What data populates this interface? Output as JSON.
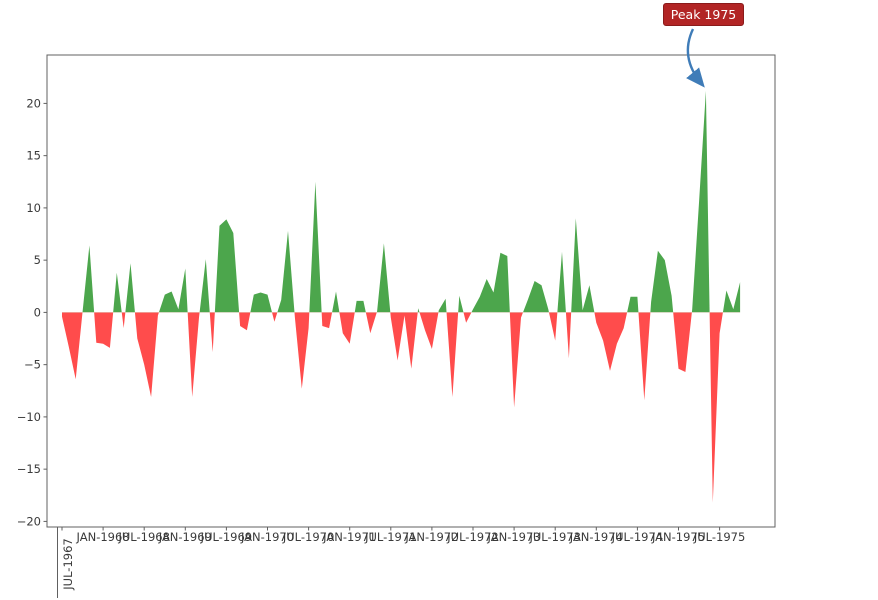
{
  "figure": {
    "background": "#ffffff"
  },
  "chart_data": {
    "type": "area",
    "title": "",
    "xlabel": "",
    "ylabel": "",
    "grid": false,
    "x_start": "JUL-1967",
    "x_freq": "monthly",
    "series": [
      {
        "name": "monthly-values",
        "values": [
          -0.4,
          -3.3,
          -6.4,
          0.0,
          6.4,
          -2.9,
          -3.0,
          -3.4,
          3.8,
          -1.5,
          4.7,
          -2.5,
          -5.0,
          -8.1,
          -0.3,
          1.7,
          2.0,
          0.3,
          4.2,
          -8.1,
          -0.5,
          5.1,
          -3.8,
          8.3,
          8.9,
          7.6,
          -1.3,
          -1.7,
          1.7,
          1.9,
          1.7,
          -0.9,
          1.2,
          7.8,
          -0.5,
          -7.3,
          -1.5,
          12.5,
          -1.3,
          -1.5,
          2.0,
          -2.0,
          -3.0,
          1.1,
          1.1,
          -2.0,
          0.1,
          6.6,
          -0.5,
          -4.6,
          -0.3,
          -5.4,
          0.4,
          -1.7,
          -3.5,
          0.2,
          1.3,
          -8.1,
          1.6,
          -1.0,
          0.3,
          1.5,
          3.2,
          1.9,
          5.7,
          5.4,
          -9.1,
          -0.5,
          1.2,
          3.0,
          2.6,
          0.3,
          -2.7,
          5.8,
          -4.4,
          9.0,
          0.2,
          2.6,
          -1.0,
          -2.7,
          -5.6,
          -3.0,
          -1.5,
          1.5,
          1.5,
          -8.4,
          1.0,
          5.9,
          5.0,
          1.6,
          -5.4,
          -5.7,
          0.3,
          10.5,
          21.2,
          -18.2,
          -2.0,
          2.1,
          0.3,
          2.9
        ]
      }
    ],
    "x_tick_labels": [
      "JUL-1967",
      "JAN-1968",
      "JUL-1968",
      "JAN-1969",
      "JUL-1969",
      "JAN-1970",
      "JUL-1970",
      "JAN-1971",
      "JUL-1971",
      "JAN-1972",
      "JUL-1972",
      "JAN-1973",
      "JUL-1973",
      "JAN-1974",
      "JUL-1974",
      "JAN-1975",
      "JUL-1975"
    ],
    "y_tick_labels": [
      "20",
      "15",
      "10",
      "5",
      "0",
      "−5",
      "−10",
      "−15",
      "−20"
    ],
    "ylim": [
      -20.6,
      24.6
    ],
    "colors": {
      "positive": "#4ca64c",
      "negative": "#ff4c4c",
      "spine": "#606060",
      "tick_text": "#3a3a3a"
    },
    "annotation": {
      "text": "Peak 1975",
      "bg": "#b22525",
      "border": "#8a1b1b",
      "text_color": "#ffffff",
      "arrow_color": "#3f7cb8",
      "target_value": 21.2
    }
  }
}
